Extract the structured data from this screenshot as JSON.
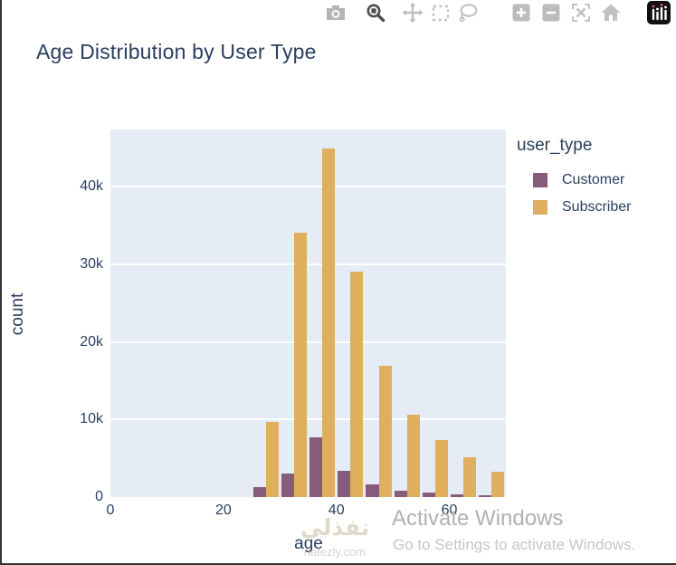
{
  "header": {
    "title": "Age Distribution by User Type"
  },
  "modebar": {
    "icons": [
      "camera-download",
      "zoom",
      "pan",
      "box-select",
      "lasso-select",
      "zoom-in",
      "zoom-out",
      "autoscale",
      "reset-axes-home",
      "plotly-logo"
    ],
    "active_icon": "zoom"
  },
  "chart_data": {
    "type": "bar",
    "subtype": "grouped-histogram",
    "title": "Age Distribution by User Type",
    "xlabel": "age",
    "ylabel": "count",
    "legend_title": "user_type",
    "legend_position": "right",
    "grid": true,
    "xlim": [
      0,
      70
    ],
    "ylim": [
      0,
      47400
    ],
    "x_ticks": [
      {
        "v": 0,
        "label": "0"
      },
      {
        "v": 20,
        "label": "20"
      },
      {
        "v": 40,
        "label": "40"
      },
      {
        "v": 60,
        "label": "60"
      }
    ],
    "y_ticks": [
      {
        "v": 0,
        "label": "0"
      },
      {
        "v": 10000,
        "label": "10k"
      },
      {
        "v": 20000,
        "label": "20k"
      },
      {
        "v": 30000,
        "label": "30k"
      },
      {
        "v": 40000,
        "label": "40k"
      }
    ],
    "bin_width": 5,
    "bin_starts": [
      25,
      30,
      35,
      40,
      45,
      50,
      55,
      60,
      65
    ],
    "categories": [
      "25-30",
      "30-35",
      "35-40",
      "40-45",
      "45-50",
      "50-55",
      "55-60",
      "60-65",
      "65-70"
    ],
    "series": [
      {
        "name": "Customer",
        "color": "#865B7C",
        "values": [
          1300,
          3000,
          7700,
          3400,
          1600,
          800,
          600,
          400,
          200
        ]
      },
      {
        "name": "Subscriber",
        "color": "#DFAF5E",
        "values": [
          9700,
          34100,
          44900,
          29100,
          16900,
          10600,
          7400,
          5100,
          3300
        ]
      }
    ]
  },
  "colors": {
    "plot_background": "#E5ECF6",
    "gridline": "#FFFFFF",
    "text": "#2A3F5F",
    "customer": "#865B7C",
    "subscriber": "#DFAF5E"
  },
  "watermark": {
    "arabic": "نفذلي",
    "site": "nafezly.com"
  },
  "activation": {
    "line1": "Activate Windows",
    "line2": "Go to Settings to activate Windows."
  }
}
